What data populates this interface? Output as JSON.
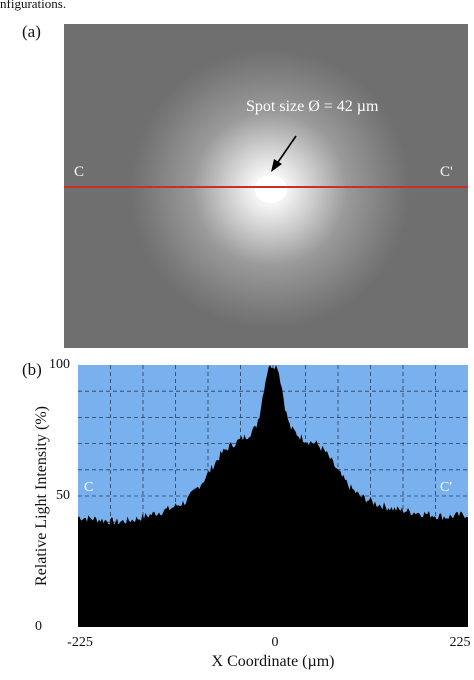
{
  "caption_fragment": "nfigurations.",
  "panel_a": {
    "label": "(a)",
    "spot_annotation": "Spot size Ø = 42 µm",
    "line_start": "C",
    "line_end": "C'",
    "line_color": "#d42a2a"
  },
  "panel_b": {
    "label": "(b)",
    "line_start": "C",
    "line_end": "C'",
    "background_color": "#78b1ee",
    "fill_color": "#000000"
  },
  "chart_data": {
    "type": "area",
    "xlabel": "X Coordinate (µm)",
    "ylabel": "Relative Light Intensity (%)",
    "xlim": [
      -225,
      225
    ],
    "ylim": [
      0,
      100
    ],
    "xticks": [
      "-225",
      "0",
      "225"
    ],
    "yticks": [
      "100",
      "50",
      "0"
    ],
    "grid": true,
    "series": [
      {
        "x": [
          -225,
          -200,
          -180,
          -160,
          -140,
          -120,
          -100,
          -90,
          -80,
          -70,
          -60,
          -50,
          -40,
          -30,
          -20,
          -15,
          -10,
          -5,
          0,
          5,
          10,
          15,
          20,
          30,
          40,
          50,
          60,
          70,
          80,
          90,
          100,
          120,
          140,
          160,
          180,
          200,
          225
        ],
        "y": [
          42,
          41,
          40,
          41,
          43,
          45,
          48,
          52,
          56,
          61,
          66,
          69,
          71,
          73,
          76,
          82,
          92,
          100,
          100,
          100,
          92,
          82,
          76,
          73,
          71,
          70,
          67,
          62,
          57,
          53,
          50,
          47,
          45,
          44,
          43,
          42,
          43
        ]
      }
    ]
  }
}
